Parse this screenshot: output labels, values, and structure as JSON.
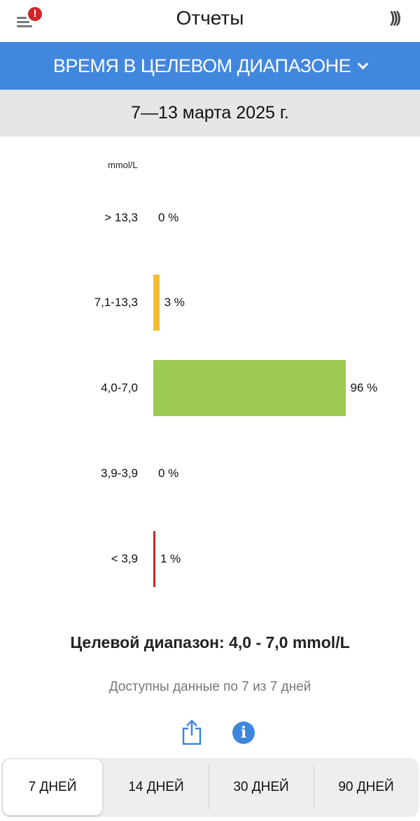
{
  "header": {
    "title": "Отчеты",
    "menu_icon": "menu-icon",
    "alert_icon": "alert-badge-icon",
    "alert_glyph": "!",
    "nfc_icon": "nfc-scan-icon"
  },
  "report_selector": {
    "label": "ВРЕМЯ В ЦЕЛЕВОМ ДИАПАЗОНЕ",
    "accent": "#4287de"
  },
  "date_range": "7—13 марта 2025 г.",
  "chart_data": {
    "type": "bar",
    "orientation": "horizontal",
    "unit_label": "mmol/L",
    "categories": [
      "> 13,3",
      "7,1-13,3",
      "4,0-7,0",
      "3,9-3,9",
      "< 3,9"
    ],
    "values": [
      0,
      3,
      96,
      0,
      1
    ],
    "value_labels": [
      "0 %",
      "3 %",
      "96 %",
      "0 %",
      "1 %"
    ],
    "colors": [
      "#f26b3a",
      "#f2c02f",
      "#9dca51",
      "#e06060",
      "#c8262a"
    ]
  },
  "target_range": {
    "label": "Целевой диапазон:",
    "value": "4,0 - 7,0 mmol/L"
  },
  "availability": "Доступны данные по 7 из 7 дней",
  "actions": {
    "share_icon": "share-icon",
    "info_icon": "info-icon",
    "info_glyph": "i"
  },
  "period_tabs": [
    {
      "label": "7 ДНЕЙ",
      "selected": true
    },
    {
      "label": "14 ДНЕЙ"
    },
    {
      "label": "30 ДНЕЙ"
    },
    {
      "label": "90 ДНЕЙ"
    }
  ]
}
